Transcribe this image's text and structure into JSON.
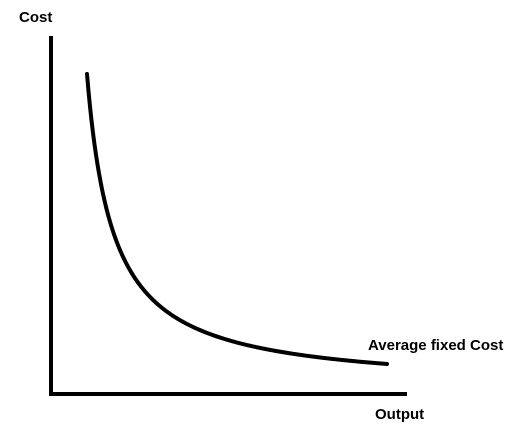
{
  "chart_data": {
    "type": "line",
    "ylabel": "Cost",
    "xlabel": "Output",
    "series": [
      {
        "name": "Average fixed Cost",
        "x": [
          0.8,
          1,
          1.5,
          2,
          3,
          4,
          5,
          6,
          7,
          8,
          9,
          10
        ],
        "y": [
          7.5,
          6.0,
          4.0,
          3.0,
          2.0,
          1.5,
          1.2,
          1.0,
          0.86,
          0.75,
          0.67,
          0.6
        ]
      }
    ],
    "grid": false,
    "legend": "none",
    "line_color": "#000000",
    "axis_color": "#000000"
  }
}
